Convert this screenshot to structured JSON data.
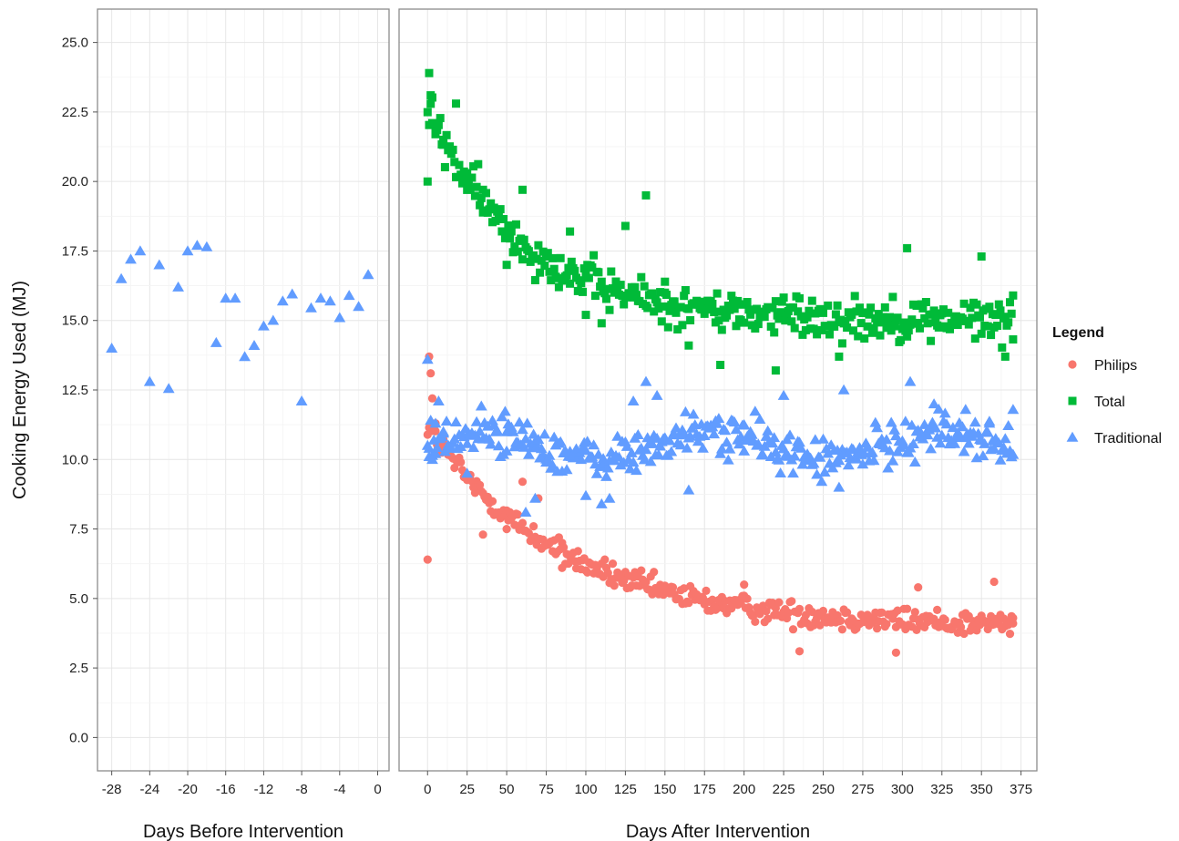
{
  "chart_data": {
    "type": "scatter",
    "y_label": "Cooking Energy Used (MJ)",
    "ylim": [
      -1.2,
      26.2
    ],
    "y_ticks": [
      "0.0",
      "2.5",
      "5.0",
      "7.5",
      "10.0",
      "12.5",
      "15.0",
      "17.5",
      "20.0",
      "22.5",
      "25.0"
    ],
    "grid": true,
    "legend": {
      "title": "Legend",
      "position": "right",
      "entries": [
        {
          "label": "Philips",
          "color": "#F8766D",
          "shape": "circle"
        },
        {
          "label": "Total",
          "color": "#00BA38",
          "shape": "square"
        },
        {
          "label": "Traditional",
          "color": "#619CFF",
          "shape": "triangle"
        }
      ]
    },
    "panels": [
      {
        "x_label": "Days Before Intervention",
        "xlim": [
          -29.5,
          1.2
        ],
        "x_ticks": [
          "-28",
          "-24",
          "-20",
          "-16",
          "-12",
          "-8",
          "-4",
          "0"
        ],
        "series": [
          {
            "name": "Traditional",
            "points": [
              [
                -28,
                14.0
              ],
              [
                -27,
                16.5
              ],
              [
                -26,
                17.2
              ],
              [
                -25,
                17.5
              ],
              [
                -24,
                12.8
              ],
              [
                -23,
                17.0
              ],
              [
                -22,
                12.55
              ],
              [
                -21,
                16.2
              ],
              [
                -20,
                17.5
              ],
              [
                -19,
                17.7
              ],
              [
                -18,
                17.65
              ],
              [
                -17,
                14.2
              ],
              [
                -16,
                15.8
              ],
              [
                -15,
                15.8
              ],
              [
                -14,
                13.7
              ],
              [
                -13,
                14.1
              ],
              [
                -12,
                14.8
              ],
              [
                -11,
                15.0
              ],
              [
                -10,
                15.7
              ],
              [
                -9,
                15.95
              ],
              [
                -8,
                12.1
              ],
              [
                -7,
                15.45
              ],
              [
                -6,
                15.8
              ],
              [
                -5,
                15.7
              ],
              [
                -4,
                15.1
              ],
              [
                -3,
                15.9
              ],
              [
                -2,
                15.5
              ],
              [
                -1,
                16.65
              ]
            ]
          }
        ]
      },
      {
        "x_label": "Days After Intervention",
        "xlim": [
          -18,
          385
        ],
        "x_ticks": [
          "0",
          "25",
          "50",
          "75",
          "100",
          "125",
          "150",
          "175",
          "200",
          "225",
          "250",
          "275",
          "300",
          "325",
          "350",
          "375"
        ],
        "series": [
          {
            "name": "Philips",
            "model": {
              "decay_from": 11.2,
              "decay_to": 4.0,
              "tau_days": 85,
              "noise": 0.45
            },
            "points": [
              [
                0,
                6.4
              ],
              [
                1,
                13.7
              ],
              [
                2,
                13.1
              ],
              [
                3,
                12.2
              ],
              [
                5,
                11.3
              ],
              [
                8,
                10.6
              ],
              [
                12,
                10.3
              ],
              [
                20,
                9.9
              ],
              [
                30,
                8.8
              ],
              [
                35,
                7.3
              ],
              [
                50,
                7.5
              ],
              [
                60,
                9.2
              ],
              [
                70,
                8.6
              ],
              [
                85,
                6.1
              ],
              [
                100,
                6.0
              ],
              [
                150,
                5.3
              ],
              [
                200,
                5.5
              ],
              [
                235,
                3.1
              ],
              [
                296,
                3.05
              ],
              [
                310,
                5.4
              ],
              [
                358,
                5.6
              ],
              [
                370,
                4.1
              ]
            ]
          },
          {
            "name": "Total",
            "model": {
              "decay_from": 22.6,
              "decay_to": 15.0,
              "tau_days": 60,
              "noise": 0.75
            },
            "points": [
              [
                0,
                20.0
              ],
              [
                1,
                23.9
              ],
              [
                2,
                23.1
              ],
              [
                3,
                22.1
              ],
              [
                5,
                21.8
              ],
              [
                10,
                21.5
              ],
              [
                18,
                22.8
              ],
              [
                25,
                20.3
              ],
              [
                35,
                19.7
              ],
              [
                50,
                17.0
              ],
              [
                60,
                19.7
              ],
              [
                75,
                17.3
              ],
              [
                90,
                18.2
              ],
              [
                100,
                15.2
              ],
              [
                110,
                14.9
              ],
              [
                125,
                18.4
              ],
              [
                138,
                19.5
              ],
              [
                150,
                16.0
              ],
              [
                165,
                14.1
              ],
              [
                185,
                13.4
              ],
              [
                220,
                13.2
              ],
              [
                260,
                13.7
              ],
              [
                303,
                17.6
              ],
              [
                350,
                17.3
              ],
              [
                365,
                13.7
              ],
              [
                370,
                15.9
              ]
            ]
          },
          {
            "name": "Traditional",
            "model": {
              "mean": 10.5,
              "noise": 0.75
            },
            "points": [
              [
                0,
                13.6
              ],
              [
                1,
                10.4
              ],
              [
                3,
                10.0
              ],
              [
                5,
                11.3
              ],
              [
                7,
                12.1
              ],
              [
                10,
                11.0
              ],
              [
                25,
                9.5
              ],
              [
                50,
                10.3
              ],
              [
                62,
                8.1
              ],
              [
                68,
                8.6
              ],
              [
                75,
                9.9
              ],
              [
                100,
                8.7
              ],
              [
                110,
                8.4
              ],
              [
                115,
                8.6
              ],
              [
                130,
                12.1
              ],
              [
                138,
                12.8
              ],
              [
                145,
                12.3
              ],
              [
                165,
                8.9
              ],
              [
                200,
                10.3
              ],
              [
                225,
                12.3
              ],
              [
                260,
                9.0
              ],
              [
                263,
                12.5
              ],
              [
                305,
                12.8
              ],
              [
                320,
                12.0
              ],
              [
                340,
                11.8
              ],
              [
                355,
                11.3
              ],
              [
                370,
                11.8
              ]
            ]
          }
        ]
      }
    ]
  }
}
